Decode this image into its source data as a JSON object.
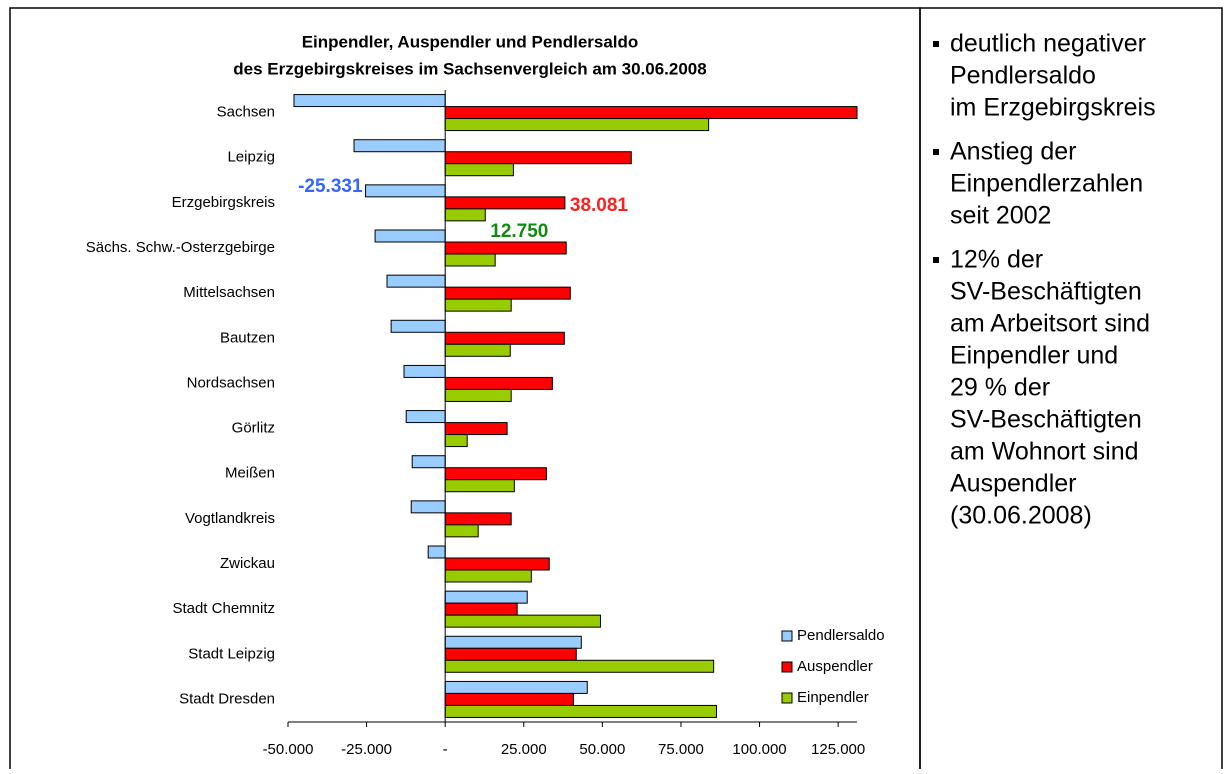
{
  "chart_data": {
    "type": "hbar",
    "title": [
      "Einpendler, Auspendler und Pendlersaldo",
      "des Erzgebirgskreises im Sachsenvergleich am 30.06.2008"
    ],
    "categories": [
      "Sachsen",
      "Leipzig",
      "Erzgebirgskreis",
      "Sächs. Schw.-Osterzgebirge",
      "Mittelsachsen",
      "Bautzen",
      "Nordsachsen",
      "Görlitz",
      "Meißen",
      "Vogtlandkreis",
      "Zwickau",
      "Stadt Chemnitz",
      "Stadt Leipzig",
      "Stadt Dresden"
    ],
    "series": [
      {
        "name": "Pendlersaldo",
        "color": "#99ccff",
        "label_color": "#3366ff",
        "values": [
          -48100,
          -29000,
          -25331,
          -22300,
          -18500,
          -17200,
          -13100,
          -12400,
          -10500,
          -10800,
          -5400,
          26100,
          43300,
          45200
        ],
        "value_labels": [
          null,
          null,
          "-25.331",
          null,
          null,
          null,
          null,
          null,
          null,
          null,
          null,
          null,
          null,
          null
        ]
      },
      {
        "name": "Auspendler",
        "color": "#ff0000",
        "label_color": "#ff2020",
        "values": [
          131000,
          59200,
          38081,
          38500,
          39800,
          37900,
          34100,
          19700,
          32200,
          21000,
          33100,
          22900,
          41700,
          40800
        ],
        "value_labels": [
          null,
          null,
          "38.081",
          null,
          null,
          null,
          null,
          null,
          null,
          null,
          null,
          null,
          null,
          null
        ]
      },
      {
        "name": "Einpendler",
        "color": "#99cc00",
        "label_color": "#108a10",
        "values": [
          83800,
          21700,
          12750,
          15900,
          21000,
          20700,
          21000,
          7000,
          22000,
          10500,
          27400,
          49400,
          85400,
          86300
        ],
        "value_labels": [
          null,
          null,
          "12.750",
          null,
          null,
          null,
          null,
          null,
          null,
          null,
          null,
          null,
          null,
          null
        ]
      }
    ],
    "xlim": [
      -50000,
      131000
    ],
    "xticks": [
      {
        "value": -50000,
        "label": "-50.000"
      },
      {
        "value": -25000,
        "label": "-25.000"
      },
      {
        "value": 0,
        "label": "-"
      },
      {
        "value": 25000,
        "label": "25.000"
      },
      {
        "value": 50000,
        "label": "50.000"
      },
      {
        "value": 75000,
        "label": "75.000"
      },
      {
        "value": 100000,
        "label": "100.000"
      },
      {
        "value": 125000,
        "label": "125.000"
      }
    ],
    "legend": "lower right"
  },
  "notes": [
    [
      "deutlich negativer",
      "Pendlersaldo",
      "im Erzgebirgskreis"
    ],
    [
      "Anstieg der",
      "Einpendlerzahlen",
      "seit 2002"
    ],
    [
      "12% der",
      "SV-Beschäftigten",
      "am Arbeitsort sind",
      "Einpendler und",
      "29 % der",
      "SV-Beschäftigten",
      "am Wohnort sind",
      "Auspendler",
      "(30.06.2008)"
    ]
  ]
}
